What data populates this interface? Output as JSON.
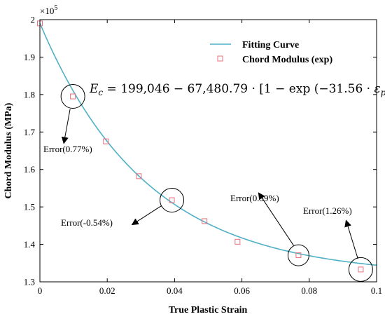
{
  "chart_data": {
    "type": "scatter",
    "xlabel": "True Plastic Strain",
    "ylabel": "Chord Modulus (MPa)",
    "exponent_label": "×10",
    "exponent_power": "5",
    "xlim": [
      0,
      0.1
    ],
    "ylim": [
      1.3,
      2.0
    ],
    "x_ticks": [
      "0",
      "0.02",
      "0.04",
      "0.06",
      "0.08",
      "0.1"
    ],
    "y_ticks": [
      "1.3",
      "1.4",
      "1.5",
      "1.6",
      "1.7",
      "1.8",
      "1.9",
      "2"
    ],
    "legend": {
      "placement": "top-right",
      "entries": [
        "Fitting Curve",
        "Chord Modulus (exp)"
      ]
    },
    "series": [
      {
        "name": "Fitting Curve",
        "kind": "line",
        "color": "#4fb0c6",
        "model": {
          "a": 1.99046,
          "b": 0.6748079,
          "c": 31.56
        }
      },
      {
        "name": "Chord Modulus (exp)",
        "kind": "marker",
        "color": "#e8707a",
        "x": [
          0.0,
          0.0098,
          0.0196,
          0.0294,
          0.0392,
          0.0489,
          0.0587,
          0.0768,
          0.0953
        ],
        "y": [
          1.99,
          1.795,
          1.675,
          1.582,
          1.518,
          1.462,
          1.407,
          1.371,
          1.333
        ]
      }
    ],
    "formula": {
      "lhs": "E",
      "lhs_sub": "c",
      "body": " = 199,046 − 67,480.79 · [1 − exp (−31.56 · ",
      "var": "ε",
      "var_sub": "p",
      "tail": ")]"
    },
    "annotations": [
      {
        "text": "Error(0.77%)",
        "x": 0.0098,
        "y": 1.795
      },
      {
        "text": "Error(-0.54%)",
        "x": 0.0392,
        "y": 1.518
      },
      {
        "text": "Error(0.39%)",
        "x": 0.0768,
        "y": 1.371
      },
      {
        "text": "Error(1.26%)",
        "x": 0.0953,
        "y": 1.333
      }
    ]
  }
}
